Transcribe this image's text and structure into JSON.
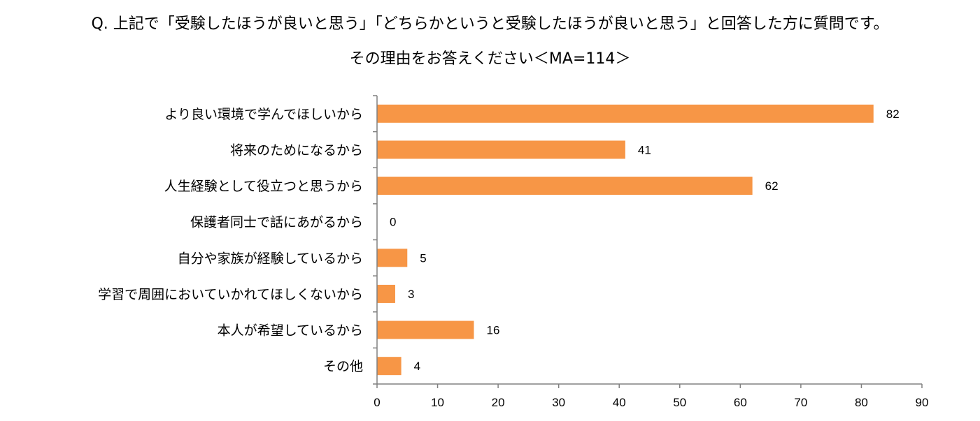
{
  "chart_data": {
    "type": "bar",
    "orientation": "horizontal",
    "title": "Q. 上記で「受験したほうが良いと思う」「どちらかというと受験したほうが良いと思う」と回答した方に質問です。",
    "subtitle": "その理由をお答えください＜MA=114＞",
    "categories": [
      "より良い環境で学んでほしいから",
      "将来のためになるから",
      "人生経験として役立つと思うから",
      "保護者同士で話にあがるから",
      "自分や家族が経験しているから",
      "学習で周囲においていかれてほしくないから",
      "本人が希望しているから",
      "その他"
    ],
    "values": [
      82,
      41,
      62,
      0,
      5,
      3,
      16,
      4
    ],
    "xlim": [
      0,
      90
    ],
    "xticks": [
      0,
      10,
      20,
      30,
      40,
      50,
      60,
      70,
      80,
      90
    ],
    "grid": false,
    "data_labels": true,
    "bar_color": "#F79646"
  }
}
